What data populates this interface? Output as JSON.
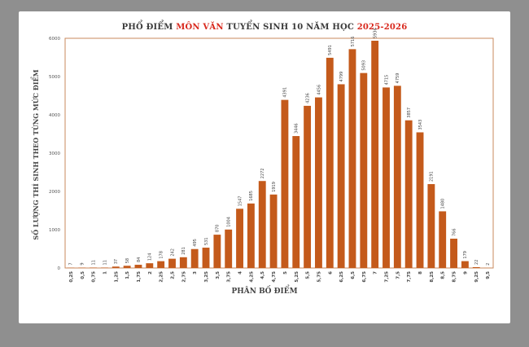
{
  "title": {
    "part1": "PHỔ ĐIỂM",
    "highlight": "MÔN VĂN",
    "part2": "TUYỂN SINH 10 NĂM HỌC",
    "year": "2025-2026"
  },
  "colors": {
    "bar": "#c45a1b",
    "highlight": "#d8281d",
    "axis": "#c9895c"
  },
  "chart_data": {
    "type": "bar",
    "title": "PHỔ ĐIỂM MÔN VĂN TUYỂN SINH 10 NĂM HỌC 2025-2026",
    "xlabel": "PHÂN BỐ ĐIỂM",
    "ylabel": "SỐ LƯỢNG THÍ SINH THEO TỪNG MỨC ĐIỂM",
    "ylim": [
      0,
      6000
    ],
    "yticks": [
      0,
      1000,
      2000,
      3000,
      4000,
      5000,
      6000
    ],
    "grid": false,
    "categories": [
      "0,25",
      "0,5",
      "0,75",
      "1",
      "1,25",
      "1,5",
      "1,75",
      "2",
      "2,25",
      "2,5",
      "2,75",
      "3",
      "3,25",
      "3,5",
      "3,75",
      "4",
      "4,25",
      "4,5",
      "4,75",
      "5",
      "5,25",
      "5,5",
      "5,75",
      "6",
      "6,25",
      "6,5",
      "6,75",
      "7",
      "7,25",
      "7,5",
      "7,75",
      "8",
      "8,25",
      "8,5",
      "8,75",
      "9",
      "9,25",
      "9,5"
    ],
    "values": [
      7,
      9,
      11,
      11,
      37,
      58,
      84,
      124,
      178,
      242,
      281,
      495,
      531,
      870,
      1004,
      1547,
      1685,
      2272,
      1919,
      4391,
      3446,
      4236,
      4456,
      5491,
      4799,
      5716,
      5093,
      5936,
      4715,
      4759,
      3857,
      3543,
      2191,
      1480,
      766,
      179,
      22,
      2
    ]
  }
}
